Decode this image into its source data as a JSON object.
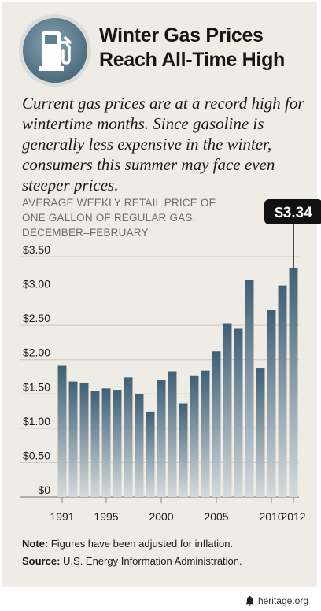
{
  "header": {
    "icon": "gas-pump-icon",
    "title_line1": "Winter Gas Prices",
    "title_line2": "Reach All-Time High"
  },
  "intro": "Current gas prices are at a record high for wintertime months. Since gasoline is generally less expensive in the winter, consumers this summer may face even steeper prices.",
  "chart_title_line1": "AVERAGE WEEKLY RETAIL PRICE OF",
  "chart_title_line2": "ONE GALLON OF REGULAR GAS,",
  "chart_title_line3": "DECEMBER–FEBRUARY",
  "callout": "$3.34",
  "notes": {
    "note_label": "Note:",
    "note_text": "Figures have been adjusted for inflation.",
    "source_label": "Source:",
    "source_text": "U.S. Energy Information Administration."
  },
  "footer": {
    "icon": "liberty-bell-icon",
    "text": "heritage.org"
  },
  "colors": {
    "bar_top": "#3f6076",
    "bar_bottom": "#d5dadb",
    "background": "#eeece4",
    "callout_bg": "#111111"
  },
  "chart_data": {
    "type": "bar",
    "categories": [
      "1991",
      "1992",
      "1993",
      "1994",
      "1995",
      "1996",
      "1997",
      "1998",
      "1999",
      "2000",
      "2001",
      "2002",
      "2003",
      "2004",
      "2005",
      "2006",
      "2007",
      "2008",
      "2009",
      "2010",
      "2011",
      "2012"
    ],
    "values": [
      1.91,
      1.68,
      1.66,
      1.54,
      1.58,
      1.56,
      1.74,
      1.5,
      1.24,
      1.71,
      1.83,
      1.36,
      1.77,
      1.84,
      2.12,
      2.53,
      2.45,
      3.16,
      1.87,
      2.72,
      3.08,
      3.34
    ],
    "xticks": [
      "1991",
      "1995",
      "2000",
      "2005",
      "2010",
      "2012"
    ],
    "yticks": [
      "$0",
      "$0.50",
      "$1.00",
      "$1.50",
      "$2.00",
      "$2.50",
      "$3.00",
      "$3.50"
    ],
    "ylim": [
      0,
      3.5
    ],
    "grid": true
  }
}
